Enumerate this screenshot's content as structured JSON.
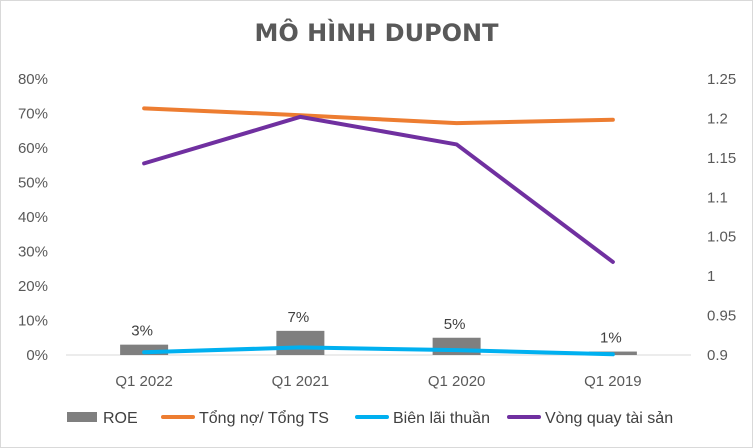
{
  "chart_data": {
    "type": "bar",
    "title": "MÔ HÌNH DUPONT",
    "categories": [
      "Q1 2022",
      "Q1 2021",
      "Q1 2020",
      "Q1 2019"
    ],
    "y_left": {
      "ylim": [
        0,
        0.8
      ],
      "ticks": [
        "0%",
        "10%",
        "20%",
        "30%",
        "40%",
        "50%",
        "60%",
        "70%",
        "80%"
      ]
    },
    "y_right": {
      "ylim": [
        0.9,
        1.25
      ],
      "ticks": [
        "0.9",
        "0.95",
        "1",
        "1.05",
        "1.1",
        "1.15",
        "1.2",
        "1.25"
      ]
    },
    "grid": false,
    "legend_position": "bottom",
    "series": [
      {
        "name": "ROE",
        "type": "bar",
        "axis": "left",
        "color": "#7f7f7f",
        "values": [
          0.03,
          0.07,
          0.05,
          0.01
        ],
        "labels": [
          "3%",
          "7%",
          "5%",
          "1%"
        ]
      },
      {
        "name": "Tổng nợ/ Tổng TS",
        "type": "line",
        "axis": "left",
        "color": "#ed7d31",
        "values": [
          0.715,
          0.695,
          0.672,
          0.682
        ]
      },
      {
        "name": "Biên lãi thuần",
        "type": "line",
        "axis": "left",
        "color": "#00b0f0",
        "values": [
          0.008,
          0.022,
          0.014,
          0.002
        ]
      },
      {
        "name": "Vòng quay tài sản",
        "type": "line",
        "axis": "right",
        "color": "#7030a0",
        "values": [
          1.143,
          1.202,
          1.167,
          1.018
        ]
      }
    ]
  }
}
